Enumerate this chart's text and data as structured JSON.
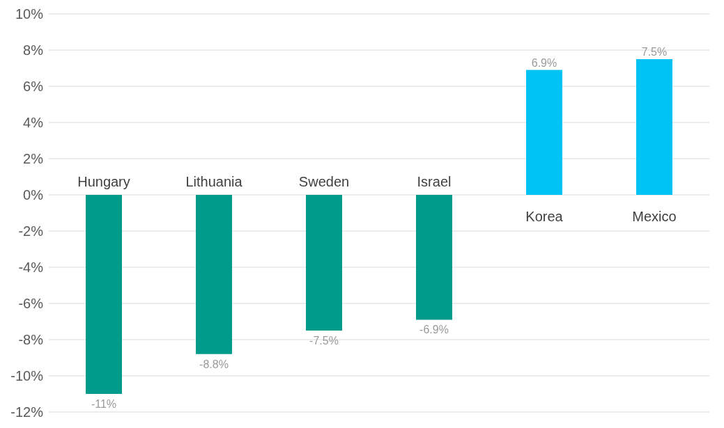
{
  "chart_data": {
    "type": "bar",
    "categories": [
      "Hungary",
      "Lithuania",
      "Sweden",
      "Israel",
      "Korea",
      "Mexico"
    ],
    "values": [
      -11,
      -8.8,
      -7.5,
      -6.9,
      6.9,
      7.5
    ],
    "value_labels": [
      "-11%",
      "-8.8%",
      "-7.5%",
      "-6.9%",
      "6.9%",
      "7.5%"
    ],
    "colors": [
      "#009b8a",
      "#009b8a",
      "#009b8a",
      "#009b8a",
      "#00c3f5",
      "#00c3f5"
    ],
    "ylim": [
      -12,
      10
    ],
    "yticks": [
      {
        "value": -12,
        "label": "-12%"
      },
      {
        "value": -10,
        "label": "-10%"
      },
      {
        "value": -8,
        "label": "-8%"
      },
      {
        "value": -6,
        "label": "-6%"
      },
      {
        "value": -4,
        "label": "-4%"
      },
      {
        "value": -2,
        "label": "-2%"
      },
      {
        "value": 0,
        "label": "0%"
      },
      {
        "value": 2,
        "label": "2%"
      },
      {
        "value": 4,
        "label": "4%"
      },
      {
        "value": 6,
        "label": "6%"
      },
      {
        "value": 8,
        "label": "8%"
      },
      {
        "value": 10,
        "label": "10%"
      }
    ],
    "grid": "y"
  }
}
